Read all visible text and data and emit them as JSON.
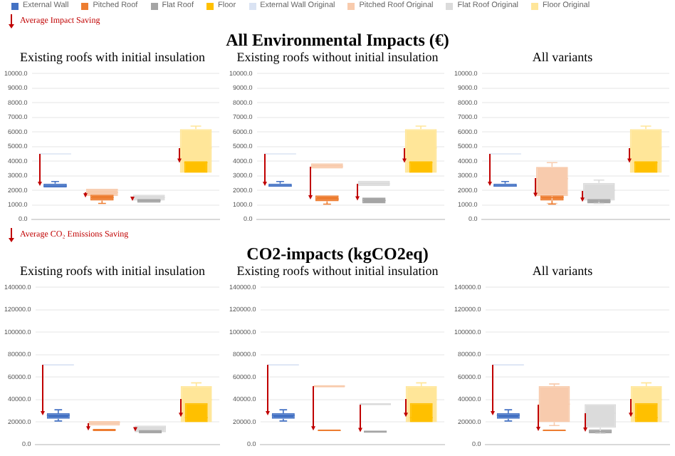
{
  "chart_data": [
    {
      "type": "box",
      "subtitle": "Existing roofs with initial insulation",
      "categories": [
        null,
        null,
        null,
        null
      ],
      "legend": "top",
      "annotations": [
        "Average Impact Saving"
      ],
      "grid": "y",
      "tick_labels": "y",
      "ylim": [
        0,
        10000
      ],
      "yticks": [
        {
          "value": 0,
          "label": "0.0"
        },
        {
          "value": 1000,
          "label": "1000.0"
        },
        {
          "value": 2000,
          "label": "2000.0"
        },
        {
          "value": 3000,
          "label": "3000.0"
        },
        {
          "value": 4000,
          "label": "4000.0"
        },
        {
          "value": 5000,
          "label": "5000.0"
        },
        {
          "value": 6000,
          "label": "6000.0"
        },
        {
          "value": 7000,
          "label": "7000.0"
        },
        {
          "value": 8000,
          "label": "8000.0"
        },
        {
          "value": 9000,
          "label": "9000.0"
        },
        {
          "value": 10000,
          "label": "10000.0"
        }
      ],
      "series": [
        {
          "name": "External Wall",
          "color": "#4472c4",
          "boxes": [
            {
              "low": 2150,
              "q1": 2200,
              "median": 2300,
              "q3": 2450,
              "high": 2600
            },
            null,
            null,
            null
          ]
        },
        {
          "name": "Pitched Roof",
          "color": "#ed7d31",
          "boxes": [
            null,
            {
              "low": 1100,
              "q1": 1300,
              "median": 1500,
              "q3": 1700,
              "high": 1750
            },
            null,
            null
          ]
        },
        {
          "name": "Flat Roof",
          "color": "#a5a5a5",
          "boxes": [
            null,
            null,
            {
              "low": 1100,
              "q1": 1150,
              "median": 1300,
              "q3": 1400,
              "high": 1450
            },
            null
          ]
        },
        {
          "name": "Floor",
          "color": "#ffc000",
          "boxes": [
            null,
            null,
            null,
            {
              "low": 3100,
              "q1": 3200,
              "median": 3900,
              "q3": 4000,
              "high": 4000
            }
          ]
        },
        {
          "name": "External Wall Original",
          "color": "#dae3f3",
          "boxes": [
            {
              "low": 4500,
              "q1": 4500,
              "median": 4500,
              "q3": 4500,
              "high": 4500
            },
            null,
            null,
            null
          ]
        },
        {
          "name": "Pitched Roof Original",
          "color": "#f8cbad",
          "boxes": [
            null,
            {
              "low": 1500,
              "q1": 1600,
              "median": 1850,
              "q3": 2100,
              "high": 2150
            },
            null,
            null
          ]
        },
        {
          "name": "Flat Roof Original",
          "color": "#dbdbdb",
          "boxes": [
            null,
            null,
            {
              "low": 1250,
              "q1": 1300,
              "median": 1500,
              "q3": 1700,
              "high": 1700
            },
            null
          ]
        },
        {
          "name": "Floor Original",
          "color": "#ffe699",
          "boxes": [
            null,
            null,
            null,
            {
              "low": 3100,
              "q1": 3200,
              "median": 4900,
              "q3": 6200,
              "high": 6400
            }
          ]
        }
      ]
    },
    {
      "type": "box",
      "title": "All Environmental Impacts (€)",
      "subtitle": "Existing roofs without initial insulation",
      "categories": [
        null,
        null,
        null,
        null
      ],
      "grid": "y",
      "tick_labels": "y",
      "ylim": [
        0,
        10000
      ],
      "yticks": [
        {
          "value": 0,
          "label": "0.0"
        },
        {
          "value": 1000,
          "label": "1000.0"
        },
        {
          "value": 2000,
          "label": "2000.0"
        },
        {
          "value": 3000,
          "label": "3000.0"
        },
        {
          "value": 4000,
          "label": "4000.0"
        },
        {
          "value": 5000,
          "label": "5000.0"
        },
        {
          "value": 6000,
          "label": "6000.0"
        },
        {
          "value": 7000,
          "label": "7000.0"
        },
        {
          "value": 8000,
          "label": "8000.0"
        },
        {
          "value": 9000,
          "label": "9000.0"
        },
        {
          "value": 10000,
          "label": "10000.0"
        }
      ],
      "series": [
        {
          "color": "#4472c4",
          "boxes": [
            {
              "low": 2150,
              "q1": 2250,
              "median": 2300,
              "q3": 2450,
              "high": 2600
            },
            null,
            null,
            null
          ]
        },
        {
          "color": "#ed7d31",
          "boxes": [
            null,
            {
              "low": 1050,
              "q1": 1250,
              "median": 1400,
              "q3": 1650,
              "high": 1700
            },
            null,
            null
          ]
        },
        {
          "color": "#a5a5a5",
          "boxes": [
            null,
            null,
            {
              "low": 1050,
              "q1": 1100,
              "median": 1300,
              "q3": 1500,
              "high": 1550
            },
            null
          ]
        },
        {
          "color": "#ffc000",
          "boxes": [
            null,
            null,
            null,
            {
              "low": 3100,
              "q1": 3200,
              "median": 3900,
              "q3": 4000,
              "high": 4000
            }
          ]
        },
        {
          "color": "#dae3f3",
          "boxes": [
            {
              "low": 4500,
              "q1": 4500,
              "median": 4500,
              "q3": 4500,
              "high": 4500
            },
            null,
            null,
            null
          ]
        },
        {
          "color": "#f8cbad",
          "boxes": [
            null,
            {
              "low": 3500,
              "q1": 3500,
              "median": 3650,
              "q3": 3850,
              "high": 3850
            },
            null,
            null
          ]
        },
        {
          "color": "#dbdbdb",
          "boxes": [
            null,
            null,
            {
              "low": 2300,
              "q1": 2300,
              "median": 2450,
              "q3": 2650,
              "high": 2650
            },
            null
          ]
        },
        {
          "color": "#ffe699",
          "boxes": [
            null,
            null,
            null,
            {
              "low": 3100,
              "q1": 3200,
              "median": 4900,
              "q3": 6200,
              "high": 6400
            }
          ]
        }
      ]
    },
    {
      "type": "box",
      "subtitle": "All variants",
      "categories": [
        null,
        null,
        null,
        null
      ],
      "grid": "y",
      "tick_labels": "y",
      "ylim": [
        0,
        10000
      ],
      "yticks": [
        {
          "value": 0,
          "label": "0.0"
        },
        {
          "value": 1000,
          "label": "1000.0"
        },
        {
          "value": 2000,
          "label": "2000.0"
        },
        {
          "value": 3000,
          "label": "3000.0"
        },
        {
          "value": 4000,
          "label": "4000.0"
        },
        {
          "value": 5000,
          "label": "5000.0"
        },
        {
          "value": 6000,
          "label": "6000.0"
        },
        {
          "value": 7000,
          "label": "7000.0"
        },
        {
          "value": 8000,
          "label": "8000.0"
        },
        {
          "value": 9000,
          "label": "9000.0"
        },
        {
          "value": 10000,
          "label": "10000.0"
        }
      ],
      "series": [
        {
          "color": "#4472c4",
          "boxes": [
            {
              "low": 2150,
              "q1": 2250,
              "median": 2300,
              "q3": 2450,
              "high": 2600
            },
            null,
            null,
            null
          ]
        },
        {
          "color": "#ed7d31",
          "boxes": [
            null,
            {
              "low": 1050,
              "q1": 1300,
              "median": 1500,
              "q3": 1650,
              "high": 1700
            },
            null,
            null
          ]
        },
        {
          "color": "#a5a5a5",
          "boxes": [
            null,
            null,
            {
              "low": 1050,
              "q1": 1100,
              "median": 1250,
              "q3": 1400,
              "high": 1450
            },
            null
          ]
        },
        {
          "color": "#ffc000",
          "boxes": [
            null,
            null,
            null,
            {
              "low": 3100,
              "q1": 3200,
              "median": 3900,
              "q3": 4000,
              "high": 4000
            }
          ]
        },
        {
          "color": "#dae3f3",
          "boxes": [
            {
              "low": 4500,
              "q1": 4500,
              "median": 4500,
              "q3": 4500,
              "high": 4500
            },
            null,
            null,
            null
          ]
        },
        {
          "color": "#f8cbad",
          "boxes": [
            null,
            {
              "low": 1100,
              "q1": 1600,
              "median": 2800,
              "q3": 3600,
              "high": 3900
            },
            null,
            null
          ]
        },
        {
          "color": "#dbdbdb",
          "boxes": [
            null,
            null,
            {
              "low": 1100,
              "q1": 1300,
              "median": 2000,
              "q3": 2500,
              "high": 2700
            },
            null
          ]
        },
        {
          "color": "#ffe699",
          "boxes": [
            null,
            null,
            null,
            {
              "low": 3100,
              "q1": 3200,
              "median": 4900,
              "q3": 6200,
              "high": 6400
            }
          ]
        }
      ]
    },
    {
      "type": "box",
      "subtitle": "Existing roofs with initial insulation",
      "categories": [
        null,
        null,
        null,
        null
      ],
      "annotations": [
        "Average CO₂ Emissions Saving"
      ],
      "grid": "y",
      "tick_labels": "y",
      "ylim": [
        0,
        140000
      ],
      "yticks": [
        {
          "value": 0,
          "label": "0.0"
        },
        {
          "value": 20000,
          "label": "20000.0"
        },
        {
          "value": 40000,
          "label": "40000.0"
        },
        {
          "value": 60000,
          "label": "60000.0"
        },
        {
          "value": 80000,
          "label": "80000.0"
        },
        {
          "value": 100000,
          "label": "100000.0"
        },
        {
          "value": 120000,
          "label": "120000.0"
        },
        {
          "value": 140000,
          "label": "140000.0"
        }
      ],
      "series": [
        {
          "color": "#4472c4",
          "boxes": [
            {
              "low": 21000,
              "q1": 23000,
              "median": 26000,
              "q3": 28000,
              "high": 31000
            },
            null,
            null,
            null
          ]
        },
        {
          "color": "#ed7d31",
          "boxes": [
            null,
            {
              "low": 11000,
              "q1": 12000,
              "median": 13000,
              "q3": 14000,
              "high": 14500
            },
            null,
            null
          ]
        },
        {
          "color": "#a5a5a5",
          "boxes": [
            null,
            null,
            {
              "low": 9500,
              "q1": 10000,
              "median": 11500,
              "q3": 13000,
              "high": 13500
            },
            null
          ]
        },
        {
          "color": "#ffc000",
          "boxes": [
            null,
            null,
            null,
            {
              "low": 19000,
              "q1": 20000,
              "median": 24000,
              "q3": 37000,
              "high": 38000
            }
          ]
        },
        {
          "color": "#dae3f3",
          "boxes": [
            {
              "low": 71000,
              "q1": 71000,
              "median": 71000,
              "q3": 71000,
              "high": 71000
            },
            null,
            null,
            null
          ]
        },
        {
          "color": "#f8cbad",
          "boxes": [
            null,
            {
              "low": 17000,
              "q1": 17000,
              "median": 19500,
              "q3": 21000,
              "high": 21000
            },
            null,
            null
          ]
        },
        {
          "color": "#dbdbdb",
          "boxes": [
            null,
            null,
            {
              "low": 10000,
              "q1": 11000,
              "median": 15000,
              "q3": 17000,
              "high": 17500
            },
            null
          ]
        },
        {
          "color": "#ffe699",
          "boxes": [
            null,
            null,
            null,
            {
              "low": 19000,
              "q1": 20000,
              "median": 40000,
              "q3": 52000,
              "high": 55000
            }
          ]
        }
      ]
    },
    {
      "type": "box",
      "title": "CO2-impacts (kgCO2eq)",
      "subtitle": "Existing roofs without initial insulation",
      "categories": [
        null,
        null,
        null,
        null
      ],
      "grid": "y",
      "tick_labels": "y",
      "ylim": [
        0,
        140000
      ],
      "yticks": [
        {
          "value": 0,
          "label": "0.0"
        },
        {
          "value": 20000,
          "label": "20000.0"
        },
        {
          "value": 40000,
          "label": "40000.0"
        },
        {
          "value": 60000,
          "label": "60000.0"
        },
        {
          "value": 80000,
          "label": "80000.0"
        },
        {
          "value": 100000,
          "label": "100000.0"
        },
        {
          "value": 120000,
          "label": "120000.0"
        },
        {
          "value": 140000,
          "label": "140000.0"
        }
      ],
      "series": [
        {
          "color": "#4472c4",
          "boxes": [
            {
              "low": 21000,
              "q1": 23000,
              "median": 26000,
              "q3": 28000,
              "high": 31000
            },
            null,
            null,
            null
          ]
        },
        {
          "color": "#ed7d31",
          "boxes": [
            null,
            {
              "low": 11000,
              "q1": 12000,
              "median": 12500,
              "q3": 13500,
              "high": 14000
            },
            null,
            null
          ]
        },
        {
          "color": "#a5a5a5",
          "boxes": [
            null,
            null,
            {
              "low": 10000,
              "q1": 10500,
              "median": 11500,
              "q3": 12500,
              "high": 13000
            },
            null
          ]
        },
        {
          "color": "#ffc000",
          "boxes": [
            null,
            null,
            null,
            {
              "low": 19000,
              "q1": 20000,
              "median": 24000,
              "q3": 37000,
              "high": 38000
            }
          ]
        },
        {
          "color": "#dae3f3",
          "boxes": [
            {
              "low": 71000,
              "q1": 71000,
              "median": 71000,
              "q3": 71000,
              "high": 71000
            },
            null,
            null,
            null
          ]
        },
        {
          "color": "#f8cbad",
          "boxes": [
            null,
            {
              "low": 51000,
              "q1": 51000,
              "median": 52000,
              "q3": 53000,
              "high": 53000
            },
            null,
            null
          ]
        },
        {
          "color": "#dbdbdb",
          "boxes": [
            null,
            null,
            {
              "low": 35000,
              "q1": 35000,
              "median": 36000,
              "q3": 37000,
              "high": 37500
            },
            null
          ]
        },
        {
          "color": "#ffe699",
          "boxes": [
            null,
            null,
            null,
            {
              "low": 19000,
              "q1": 20000,
              "median": 40000,
              "q3": 52000,
              "high": 55000
            }
          ]
        }
      ]
    },
    {
      "type": "box",
      "subtitle": "All variants",
      "categories": [
        null,
        null,
        null,
        null
      ],
      "grid": "y",
      "tick_labels": "y",
      "ylim": [
        0,
        140000
      ],
      "yticks": [
        {
          "value": 0,
          "label": "0.0"
        },
        {
          "value": 20000,
          "label": "20000.0"
        },
        {
          "value": 40000,
          "label": "40000.0"
        },
        {
          "value": 60000,
          "label": "60000.0"
        },
        {
          "value": 80000,
          "label": "80000.0"
        },
        {
          "value": 100000,
          "label": "100000.0"
        },
        {
          "value": 120000,
          "label": "120000.0"
        },
        {
          "value": 140000,
          "label": "140000.0"
        }
      ],
      "series": [
        {
          "color": "#4472c4",
          "boxes": [
            {
              "low": 21000,
              "q1": 23000,
              "median": 26000,
              "q3": 28000,
              "high": 31000
            },
            null,
            null,
            null
          ]
        },
        {
          "color": "#ed7d31",
          "boxes": [
            null,
            {
              "low": 11000,
              "q1": 12000,
              "median": 12500,
              "q3": 13500,
              "high": 14000
            },
            null,
            null
          ]
        },
        {
          "color": "#a5a5a5",
          "boxes": [
            null,
            null,
            {
              "low": 9500,
              "q1": 10000,
              "median": 11500,
              "q3": 13500,
              "high": 14000
            },
            null
          ]
        },
        {
          "color": "#ffc000",
          "boxes": [
            null,
            null,
            null,
            {
              "low": 19000,
              "q1": 20000,
              "median": 24000,
              "q3": 37000,
              "high": 38000
            }
          ]
        },
        {
          "color": "#dae3f3",
          "boxes": [
            {
              "low": 71000,
              "q1": 71000,
              "median": 71000,
              "q3": 71000,
              "high": 71000
            },
            null,
            null,
            null
          ]
        },
        {
          "color": "#f8cbad",
          "boxes": [
            null,
            {
              "low": 17000,
              "q1": 20000,
              "median": 36000,
              "q3": 52000,
              "high": 54000
            },
            null,
            null
          ]
        },
        {
          "color": "#dbdbdb",
          "boxes": [
            null,
            null,
            {
              "low": 10000,
              "q1": 15000,
              "median": 28000,
              "q3": 36000,
              "high": 37500
            },
            null
          ]
        },
        {
          "color": "#ffe699",
          "boxes": [
            null,
            null,
            null,
            {
              "low": 19000,
              "q1": 20000,
              "median": 40000,
              "q3": 52000,
              "high": 55000
            }
          ]
        }
      ]
    }
  ]
}
